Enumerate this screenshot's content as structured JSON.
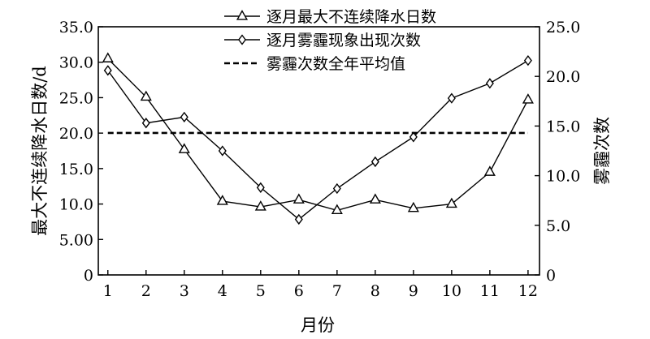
{
  "chart_data": {
    "type": "line",
    "xlabel": "月份",
    "ylabel_left": "最大不连续降水日数/d",
    "ylabel_right": "雾霾次数",
    "x": [
      1,
      2,
      3,
      4,
      5,
      6,
      7,
      8,
      9,
      10,
      11,
      12
    ],
    "x_tick_labels": [
      "1",
      "2",
      "3",
      "4",
      "5",
      "6",
      "7",
      "8",
      "9",
      "10",
      "11",
      "12"
    ],
    "ylim_left": [
      0,
      35
    ],
    "ylim_right": [
      0,
      25
    ],
    "y_left_tick_values": [
      0,
      5,
      10,
      15,
      20,
      25,
      30,
      35
    ],
    "y_left_tick_labels": [
      "0",
      "5.00",
      "10.0",
      "15.0",
      "20.0",
      "25.0",
      "30.0",
      "35.0"
    ],
    "y_right_tick_values": [
      0,
      5,
      10,
      15,
      20,
      25
    ],
    "y_right_tick_labels": [
      "0",
      "5.0",
      "10.0",
      "15.0",
      "20.0",
      "25.0"
    ],
    "grid": false,
    "legend_position": "top-right",
    "series": [
      {
        "name": "逐月最大不连续降水日数",
        "axis": "left",
        "marker": "triangle",
        "values": [
          30.5,
          25.1,
          17.7,
          10.4,
          9.6,
          10.6,
          9.1,
          10.6,
          9.4,
          10.0,
          14.5,
          24.7
        ]
      },
      {
        "name": "逐月雾霾现象出现次数",
        "axis": "right",
        "marker": "diamond",
        "values": [
          20.6,
          15.3,
          15.9,
          12.5,
          8.8,
          5.6,
          8.7,
          11.4,
          13.9,
          17.8,
          19.3,
          21.6
        ]
      },
      {
        "name": "雾霾次数全年平均值",
        "axis": "right",
        "style": "dashed",
        "value": 14.3
      }
    ]
  }
}
